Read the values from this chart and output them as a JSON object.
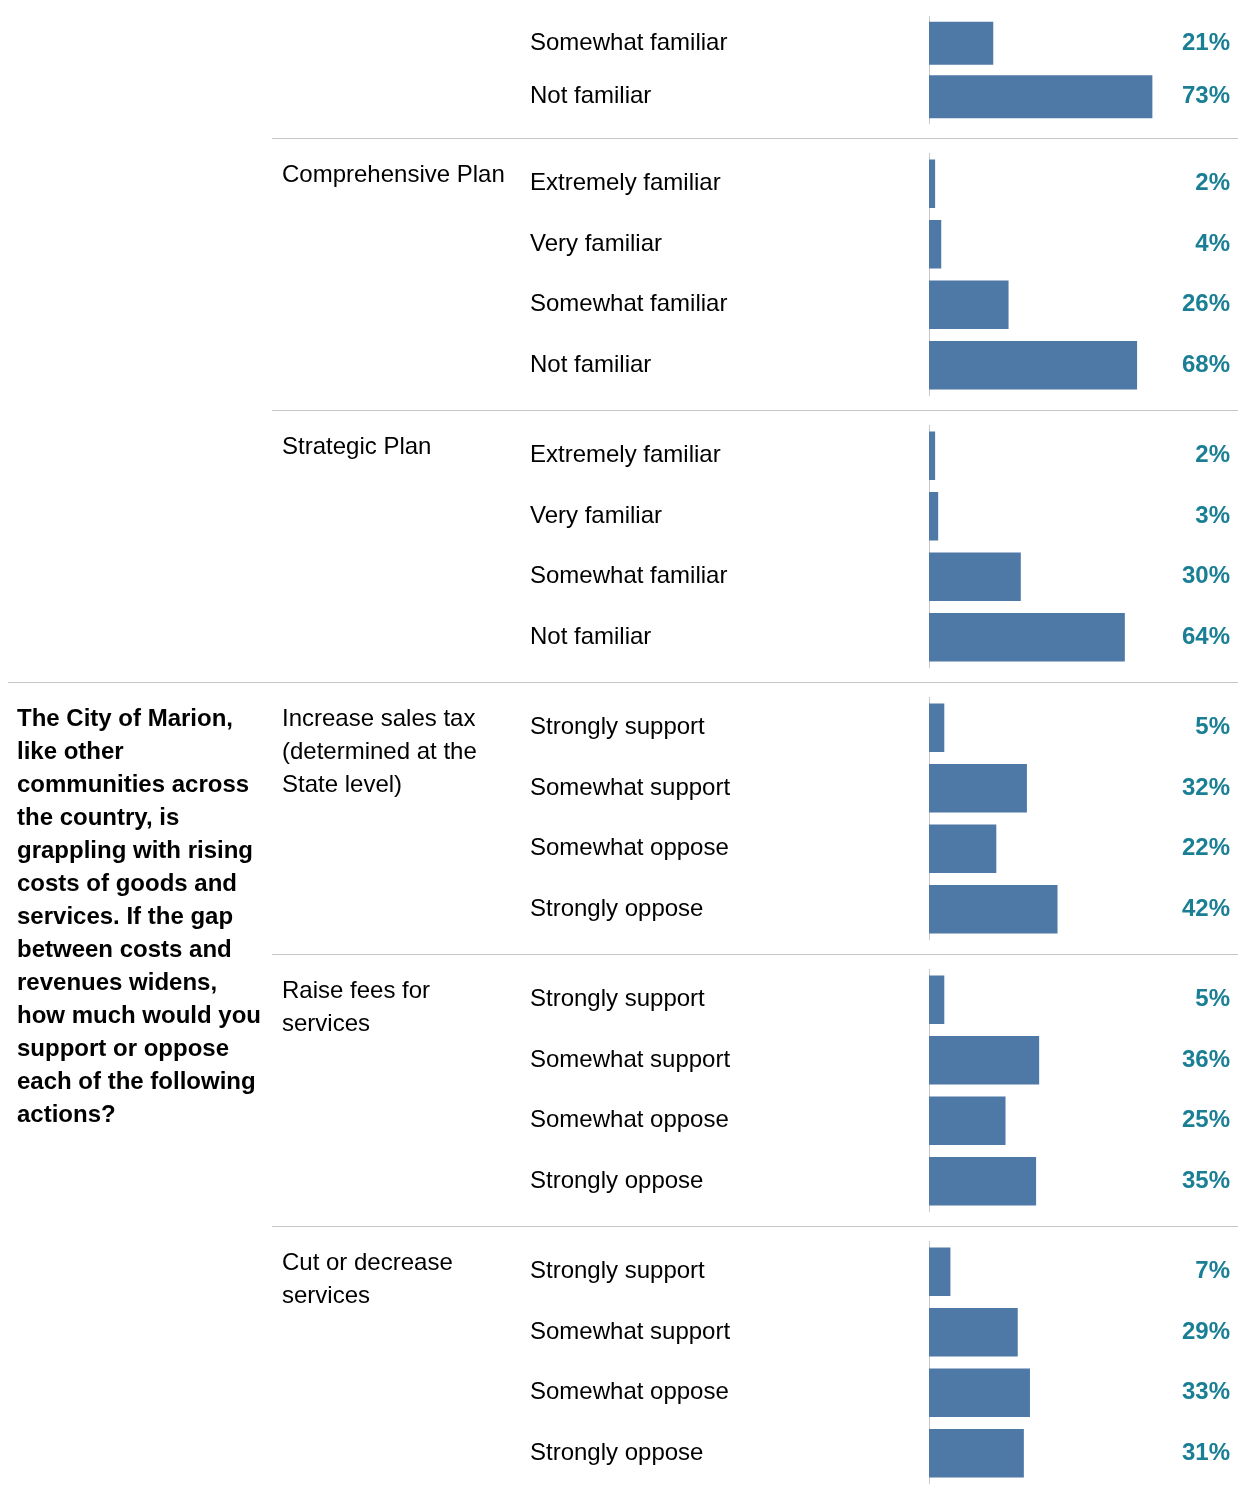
{
  "chart_data": [
    {
      "type": "bar",
      "orientation": "horizontal",
      "categories": [
        "Somewhat familiar",
        "Not familiar"
      ],
      "values": [
        21,
        73
      ],
      "value_labels": [
        "21%",
        "73%"
      ],
      "color": "#4e79a7",
      "xlim": [
        0,
        100
      ],
      "tick_labels": "y",
      "legend": false
    },
    {
      "type": "bar",
      "orientation": "horizontal",
      "title": "Comprehensive Plan",
      "categories": [
        "Extremely familiar",
        "Very familiar",
        "Somewhat familiar",
        "Not familiar"
      ],
      "values": [
        2,
        4,
        26,
        68
      ],
      "value_labels": [
        "2%",
        "4%",
        "26%",
        "68%"
      ],
      "color": "#4e79a7",
      "xlim": [
        0,
        100
      ],
      "tick_labels": "y",
      "legend": false
    },
    {
      "type": "bar",
      "orientation": "horizontal",
      "title": "Strategic Plan",
      "categories": [
        "Extremely familiar",
        "Very familiar",
        "Somewhat familiar",
        "Not familiar"
      ],
      "values": [
        2,
        3,
        30,
        64
      ],
      "value_labels": [
        "2%",
        "3%",
        "30%",
        "64%"
      ],
      "color": "#4e79a7",
      "xlim": [
        0,
        100
      ],
      "tick_labels": "y",
      "legend": false
    },
    {
      "type": "bar",
      "orientation": "horizontal",
      "title": "Increase sales tax (determined at the State level)",
      "annotations": [
        "The City of Marion, like other communities across the country, is grappling with rising costs of goods and services. If the gap between costs and revenues widens, how much would you support or oppose each of the following actions?"
      ],
      "categories": [
        "Strongly support",
        "Somewhat support",
        "Somewhat oppose",
        "Strongly oppose"
      ],
      "values": [
        5,
        32,
        22,
        42
      ],
      "value_labels": [
        "5%",
        "32%",
        "22%",
        "42%"
      ],
      "color": "#4e79a7",
      "xlim": [
        0,
        100
      ],
      "tick_labels": "y",
      "legend": false
    },
    {
      "type": "bar",
      "orientation": "horizontal",
      "title": "Raise fees for services",
      "categories": [
        "Strongly support",
        "Somewhat support",
        "Somewhat oppose",
        "Strongly oppose"
      ],
      "values": [
        5,
        36,
        25,
        35
      ],
      "value_labels": [
        "5%",
        "36%",
        "25%",
        "35%"
      ],
      "color": "#4e79a7",
      "xlim": [
        0,
        100
      ],
      "tick_labels": "y",
      "legend": false
    },
    {
      "type": "bar",
      "orientation": "horizontal",
      "title": "Cut or decrease services",
      "categories": [
        "Strongly support",
        "Somewhat support",
        "Somewhat oppose",
        "Strongly oppose"
      ],
      "values": [
        7,
        29,
        33,
        31
      ],
      "value_labels": [
        "7%",
        "29%",
        "33%",
        "31%"
      ],
      "color": "#4e79a7",
      "xlim": [
        0,
        100
      ],
      "tick_labels": "y",
      "legend": false
    }
  ]
}
